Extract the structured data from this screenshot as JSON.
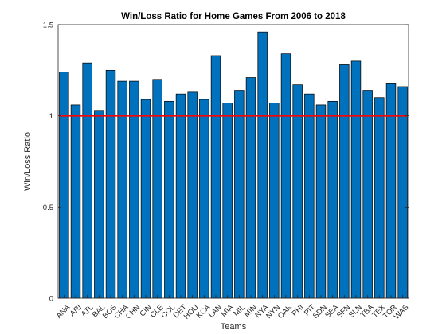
{
  "chart_data": {
    "type": "bar",
    "title": "Win/Loss Ratio for Home Games From 2006 to 2018",
    "xlabel": "Teams",
    "ylabel": "Win/Loss Ratio",
    "ylim": [
      0,
      1.5
    ],
    "yticks": [
      0,
      0.5,
      1,
      1.5
    ],
    "ytick_labels": [
      "0",
      "0.5",
      "1",
      "1.5"
    ],
    "categories": [
      "ANA",
      "ARI",
      "ATL",
      "BAL",
      "BOS",
      "CHA",
      "CHN",
      "CIN",
      "CLE",
      "COL",
      "DET",
      "HOU",
      "KCA",
      "LAN",
      "MIA",
      "MIL",
      "MIN",
      "NYA",
      "NYN",
      "OAK",
      "PHI",
      "PIT",
      "SDN",
      "SEA",
      "SFN",
      "SLN",
      "TBA",
      "TEX",
      "TOR",
      "WAS"
    ],
    "values": [
      1.24,
      1.06,
      1.29,
      1.03,
      1.25,
      1.19,
      1.19,
      1.09,
      1.2,
      1.08,
      1.12,
      1.13,
      1.09,
      1.33,
      1.07,
      1.14,
      1.21,
      1.46,
      1.07,
      1.34,
      1.17,
      1.12,
      1.06,
      1.08,
      1.28,
      1.3,
      1.14,
      1.1,
      1.18,
      1.16
    ],
    "reference_line": 1,
    "colors": {
      "bar_fill": "#0072bd",
      "bar_stroke": "#000000",
      "reference_line": "#ff0000",
      "axis": "#262626"
    },
    "grid": false
  }
}
